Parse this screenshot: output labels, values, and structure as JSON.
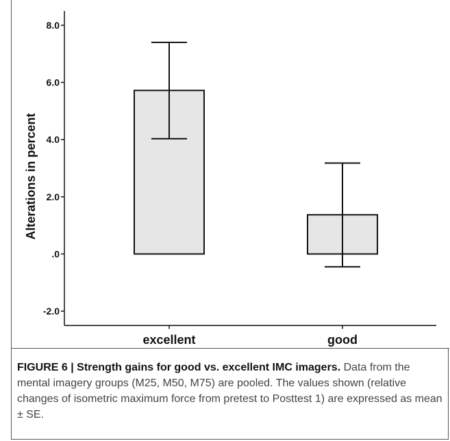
{
  "chart_data": {
    "type": "bar",
    "categories": [
      "excellent",
      "good"
    ],
    "values": [
      5.72,
      1.37
    ],
    "error_upper": [
      7.4,
      3.18
    ],
    "error_lower": [
      4.03,
      -0.45
    ],
    "ylabel": "Alterations in percent",
    "xlabel": "",
    "ylim": [
      -2.5,
      8.5
    ],
    "yticks": [
      8.0,
      6.0,
      4.0,
      2.0,
      0.0,
      -2.0
    ],
    "ytick_labels": [
      "8.0",
      "6.0",
      "4.0",
      "2.0",
      ".0",
      "-2.0"
    ],
    "grid": false,
    "bar_fill": "#e6e6e6",
    "bar_stroke": "#111111"
  },
  "caption": {
    "label": "FIGURE 6 |",
    "title": "Strength gains for good vs. excellent IMC imagers.",
    "body": "Data from the mental imagery groups (M25, M50, M75) are pooled. The values shown (relative changes of isometric maximum force from pretest to Posttest 1) are expressed as mean ± SE."
  }
}
